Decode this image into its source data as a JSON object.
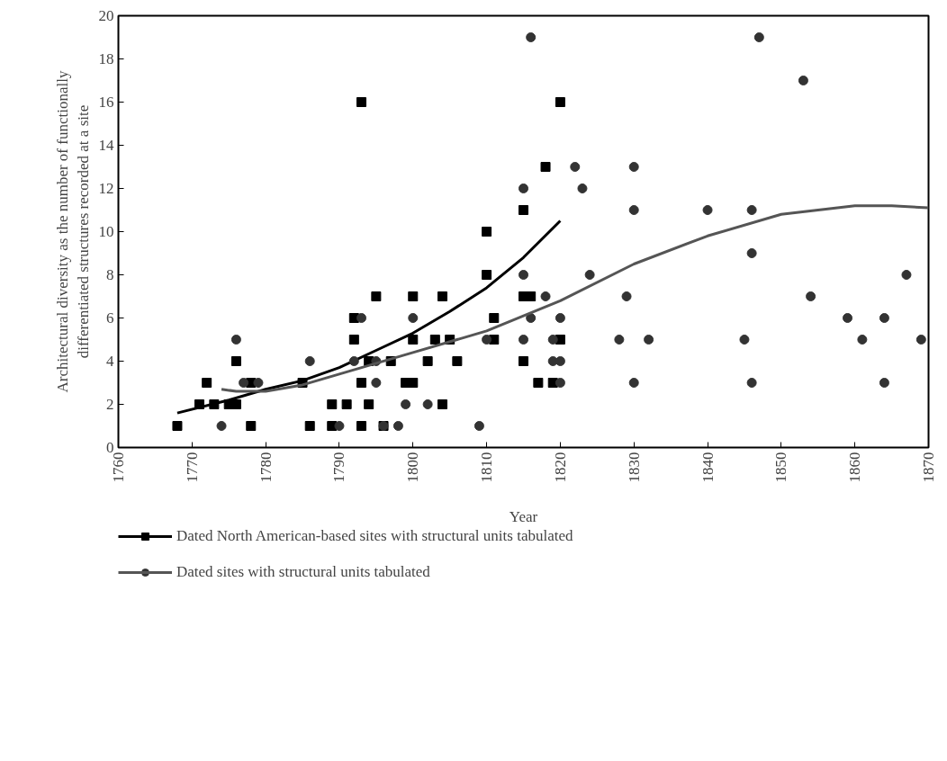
{
  "chart_data": {
    "type": "scatter",
    "xlabel": "Year",
    "ylabel": "Architectural diversity as the number of functionally\ndifferentiated structures recorded at a site",
    "xlim": [
      1760,
      1870
    ],
    "xticks": [
      1760,
      1770,
      1780,
      1790,
      1800,
      1810,
      1820,
      1830,
      1840,
      1850,
      1860,
      1870
    ],
    "ylim": [
      0,
      20
    ],
    "yticks": [
      0,
      2,
      4,
      6,
      8,
      10,
      12,
      14,
      16,
      18,
      20
    ],
    "grid": false,
    "legend": "bottom",
    "series": [
      {
        "name": "Dated North American-based sites with structural units tabulated",
        "marker": "square",
        "color": "#000000",
        "x": [
          1768,
          1771,
          1772,
          1773,
          1775,
          1776,
          1776,
          1778,
          1778,
          1785,
          1786,
          1789,
          1789,
          1791,
          1792,
          1792,
          1793,
          1793,
          1793,
          1794,
          1794,
          1795,
          1796,
          1797,
          1799,
          1800,
          1800,
          1800,
          1802,
          1803,
          1804,
          1804,
          1805,
          1806,
          1810,
          1810,
          1811,
          1811,
          1815,
          1815,
          1815,
          1816,
          1817,
          1818,
          1820,
          1820,
          1819
        ],
        "values": [
          1,
          2,
          3,
          2,
          2,
          2,
          4,
          3,
          1,
          3,
          1,
          2,
          1,
          2,
          6,
          5,
          16,
          3,
          1,
          2,
          4,
          7,
          1,
          4,
          3,
          7,
          5,
          3,
          4,
          5,
          7,
          2,
          5,
          4,
          10,
          8,
          6,
          5,
          11,
          7,
          4,
          7,
          3,
          13,
          16,
          5,
          3
        ]
      },
      {
        "type": "line",
        "color": "#000000",
        "x": [
          1768,
          1775,
          1780,
          1785,
          1790,
          1795,
          1800,
          1805,
          1810,
          1815,
          1820
        ],
        "values": [
          1.6,
          2.2,
          2.7,
          3.1,
          3.7,
          4.5,
          5.3,
          6.3,
          7.4,
          8.8,
          10.5
        ]
      },
      {
        "name": "Dated sites with structural units tabulated",
        "marker": "circle",
        "color": "#333333",
        "x": [
          1774,
          1776,
          1777,
          1779,
          1786,
          1790,
          1792,
          1793,
          1795,
          1795,
          1796,
          1798,
          1799,
          1800,
          1802,
          1809,
          1810,
          1815,
          1815,
          1815,
          1816,
          1816,
          1818,
          1819,
          1819,
          1820,
          1820,
          1820,
          1822,
          1823,
          1824,
          1828,
          1829,
          1830,
          1830,
          1830,
          1832,
          1840,
          1845,
          1846,
          1846,
          1846,
          1847,
          1853,
          1854,
          1859,
          1861,
          1864,
          1864,
          1867,
          1869
        ],
        "values": [
          1,
          5,
          3,
          3,
          4,
          1,
          4,
          6,
          4,
          3,
          1,
          1,
          2,
          6,
          2,
          1,
          5,
          12,
          8,
          5,
          19,
          6,
          7,
          5,
          4,
          3,
          4,
          6,
          13,
          12,
          8,
          5,
          7,
          13,
          11,
          3,
          5,
          11,
          5,
          11,
          9,
          3,
          19,
          17,
          7,
          6,
          5,
          6,
          3,
          8,
          5
        ]
      },
      {
        "type": "line",
        "color": "#555555",
        "x": [
          1774,
          1776,
          1780,
          1785,
          1790,
          1795,
          1800,
          1810,
          1820,
          1830,
          1840,
          1850,
          1860,
          1865,
          1870
        ],
        "values": [
          2.7,
          2.6,
          2.6,
          2.9,
          3.4,
          3.9,
          4.4,
          5.4,
          6.8,
          8.5,
          9.8,
          10.8,
          11.2,
          11.2,
          11.1
        ]
      }
    ]
  }
}
